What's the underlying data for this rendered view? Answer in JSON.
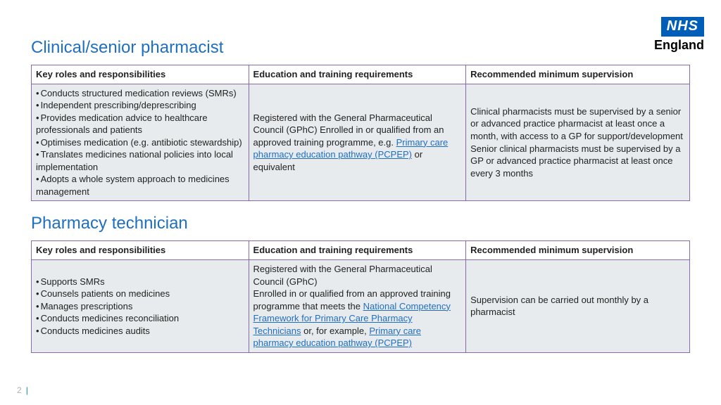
{
  "logo": {
    "top": "NHS",
    "bottom": "England"
  },
  "section1": {
    "title": "Clinical/senior pharmacist",
    "headers": [
      "Key roles and responsibilities",
      "Education and training requirements",
      "Recommended minimum supervision"
    ],
    "roles": [
      "Conducts structured medication reviews (SMRs)",
      "Independent prescribing/deprescribing",
      "Provides medication advice to healthcare professionals and patients",
      "Optimises medication (e.g. antibiotic stewardship)",
      "Translates medicines national policies into local implementation",
      "Adopts a whole system approach to medicines management"
    ],
    "edu_pre": "Registered with the General Pharmaceutical Council (GPhC)\nEnrolled in or qualified from an approved training programme, e.g. ",
    "edu_link": "Primary care pharmacy education pathway (PCPEP)",
    "edu_post": " or equivalent",
    "supervision": "Clinical pharmacists must be supervised by a senior or advanced practice pharmacist at least once a month, with access to a GP for support/development\nSenior clinical pharmacists must be supervised by a GP or advanced practice pharmacist at least once every 3 months"
  },
  "section2": {
    "title": "Pharmacy technician",
    "headers": [
      "Key roles and responsibilities",
      "Education and training requirements",
      "Recommended minimum supervision"
    ],
    "roles": [
      "Supports SMRs",
      "Counsels patients on medicines",
      "Manages prescriptions",
      "Conducts medicines reconciliation",
      "Conducts medicines audits"
    ],
    "edu_pre": "Registered with the General Pharmaceutical Council (GPhC)\nEnrolled in or qualified from an approved training programme that meets the ",
    "edu_link1": "National Competency Framework for Primary Care Pharmacy Technicians",
    "edu_mid": " or, for example, ",
    "edu_link2": "Primary care pharmacy education pathway (PCPEP)",
    "supervision": "Supervision can be carried out monthly by a pharmacist"
  },
  "page_number": "2"
}
